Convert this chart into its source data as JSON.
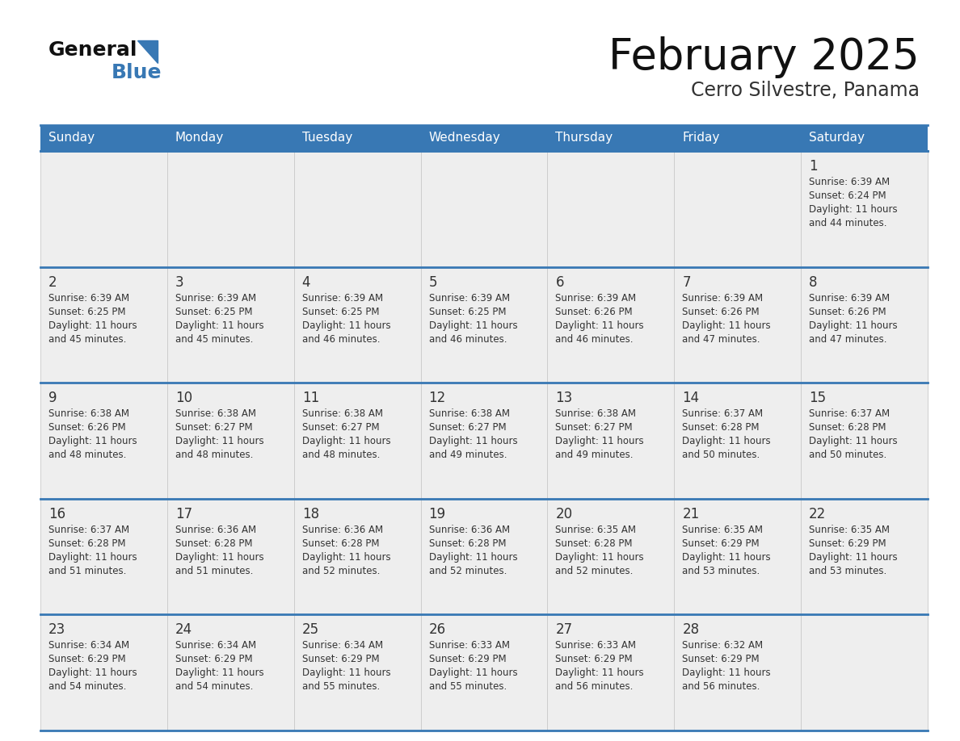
{
  "title": "February 2025",
  "subtitle": "Cerro Silvestre, Panama",
  "days_of_week": [
    "Sunday",
    "Monday",
    "Tuesday",
    "Wednesday",
    "Thursday",
    "Friday",
    "Saturday"
  ],
  "header_bg_color": "#3878b4",
  "header_text_color": "#ffffff",
  "cell_bg_color": "#eeeeee",
  "border_color": "#3878b4",
  "row_line_color": "#3878b4",
  "day_number_color": "#333333",
  "text_color": "#333333",
  "title_color": "#111111",
  "subtitle_color": "#333333",
  "logo_text_color": "#111111",
  "logo_blue_color": "#3878b4",
  "logo_triangle_color": "#3878b4",
  "calendar_data": [
    [
      null,
      null,
      null,
      null,
      null,
      null,
      {
        "day": 1,
        "sunrise": "6:39 AM",
        "sunset": "6:24 PM",
        "daylight_hours": 11,
        "daylight_minutes": 44
      }
    ],
    [
      {
        "day": 2,
        "sunrise": "6:39 AM",
        "sunset": "6:25 PM",
        "daylight_hours": 11,
        "daylight_minutes": 45
      },
      {
        "day": 3,
        "sunrise": "6:39 AM",
        "sunset": "6:25 PM",
        "daylight_hours": 11,
        "daylight_minutes": 45
      },
      {
        "day": 4,
        "sunrise": "6:39 AM",
        "sunset": "6:25 PM",
        "daylight_hours": 11,
        "daylight_minutes": 46
      },
      {
        "day": 5,
        "sunrise": "6:39 AM",
        "sunset": "6:25 PM",
        "daylight_hours": 11,
        "daylight_minutes": 46
      },
      {
        "day": 6,
        "sunrise": "6:39 AM",
        "sunset": "6:26 PM",
        "daylight_hours": 11,
        "daylight_minutes": 46
      },
      {
        "day": 7,
        "sunrise": "6:39 AM",
        "sunset": "6:26 PM",
        "daylight_hours": 11,
        "daylight_minutes": 47
      },
      {
        "day": 8,
        "sunrise": "6:39 AM",
        "sunset": "6:26 PM",
        "daylight_hours": 11,
        "daylight_minutes": 47
      }
    ],
    [
      {
        "day": 9,
        "sunrise": "6:38 AM",
        "sunset": "6:26 PM",
        "daylight_hours": 11,
        "daylight_minutes": 48
      },
      {
        "day": 10,
        "sunrise": "6:38 AM",
        "sunset": "6:27 PM",
        "daylight_hours": 11,
        "daylight_minutes": 48
      },
      {
        "day": 11,
        "sunrise": "6:38 AM",
        "sunset": "6:27 PM",
        "daylight_hours": 11,
        "daylight_minutes": 48
      },
      {
        "day": 12,
        "sunrise": "6:38 AM",
        "sunset": "6:27 PM",
        "daylight_hours": 11,
        "daylight_minutes": 49
      },
      {
        "day": 13,
        "sunrise": "6:38 AM",
        "sunset": "6:27 PM",
        "daylight_hours": 11,
        "daylight_minutes": 49
      },
      {
        "day": 14,
        "sunrise": "6:37 AM",
        "sunset": "6:28 PM",
        "daylight_hours": 11,
        "daylight_minutes": 50
      },
      {
        "day": 15,
        "sunrise": "6:37 AM",
        "sunset": "6:28 PM",
        "daylight_hours": 11,
        "daylight_minutes": 50
      }
    ],
    [
      {
        "day": 16,
        "sunrise": "6:37 AM",
        "sunset": "6:28 PM",
        "daylight_hours": 11,
        "daylight_minutes": 51
      },
      {
        "day": 17,
        "sunrise": "6:36 AM",
        "sunset": "6:28 PM",
        "daylight_hours": 11,
        "daylight_minutes": 51
      },
      {
        "day": 18,
        "sunrise": "6:36 AM",
        "sunset": "6:28 PM",
        "daylight_hours": 11,
        "daylight_minutes": 52
      },
      {
        "day": 19,
        "sunrise": "6:36 AM",
        "sunset": "6:28 PM",
        "daylight_hours": 11,
        "daylight_minutes": 52
      },
      {
        "day": 20,
        "sunrise": "6:35 AM",
        "sunset": "6:28 PM",
        "daylight_hours": 11,
        "daylight_minutes": 52
      },
      {
        "day": 21,
        "sunrise": "6:35 AM",
        "sunset": "6:29 PM",
        "daylight_hours": 11,
        "daylight_minutes": 53
      },
      {
        "day": 22,
        "sunrise": "6:35 AM",
        "sunset": "6:29 PM",
        "daylight_hours": 11,
        "daylight_minutes": 53
      }
    ],
    [
      {
        "day": 23,
        "sunrise": "6:34 AM",
        "sunset": "6:29 PM",
        "daylight_hours": 11,
        "daylight_minutes": 54
      },
      {
        "day": 24,
        "sunrise": "6:34 AM",
        "sunset": "6:29 PM",
        "daylight_hours": 11,
        "daylight_minutes": 54
      },
      {
        "day": 25,
        "sunrise": "6:34 AM",
        "sunset": "6:29 PM",
        "daylight_hours": 11,
        "daylight_minutes": 55
      },
      {
        "day": 26,
        "sunrise": "6:33 AM",
        "sunset": "6:29 PM",
        "daylight_hours": 11,
        "daylight_minutes": 55
      },
      {
        "day": 27,
        "sunrise": "6:33 AM",
        "sunset": "6:29 PM",
        "daylight_hours": 11,
        "daylight_minutes": 56
      },
      {
        "day": 28,
        "sunrise": "6:32 AM",
        "sunset": "6:29 PM",
        "daylight_hours": 11,
        "daylight_minutes": 56
      },
      null
    ]
  ],
  "num_weeks": 5,
  "num_cols": 7
}
